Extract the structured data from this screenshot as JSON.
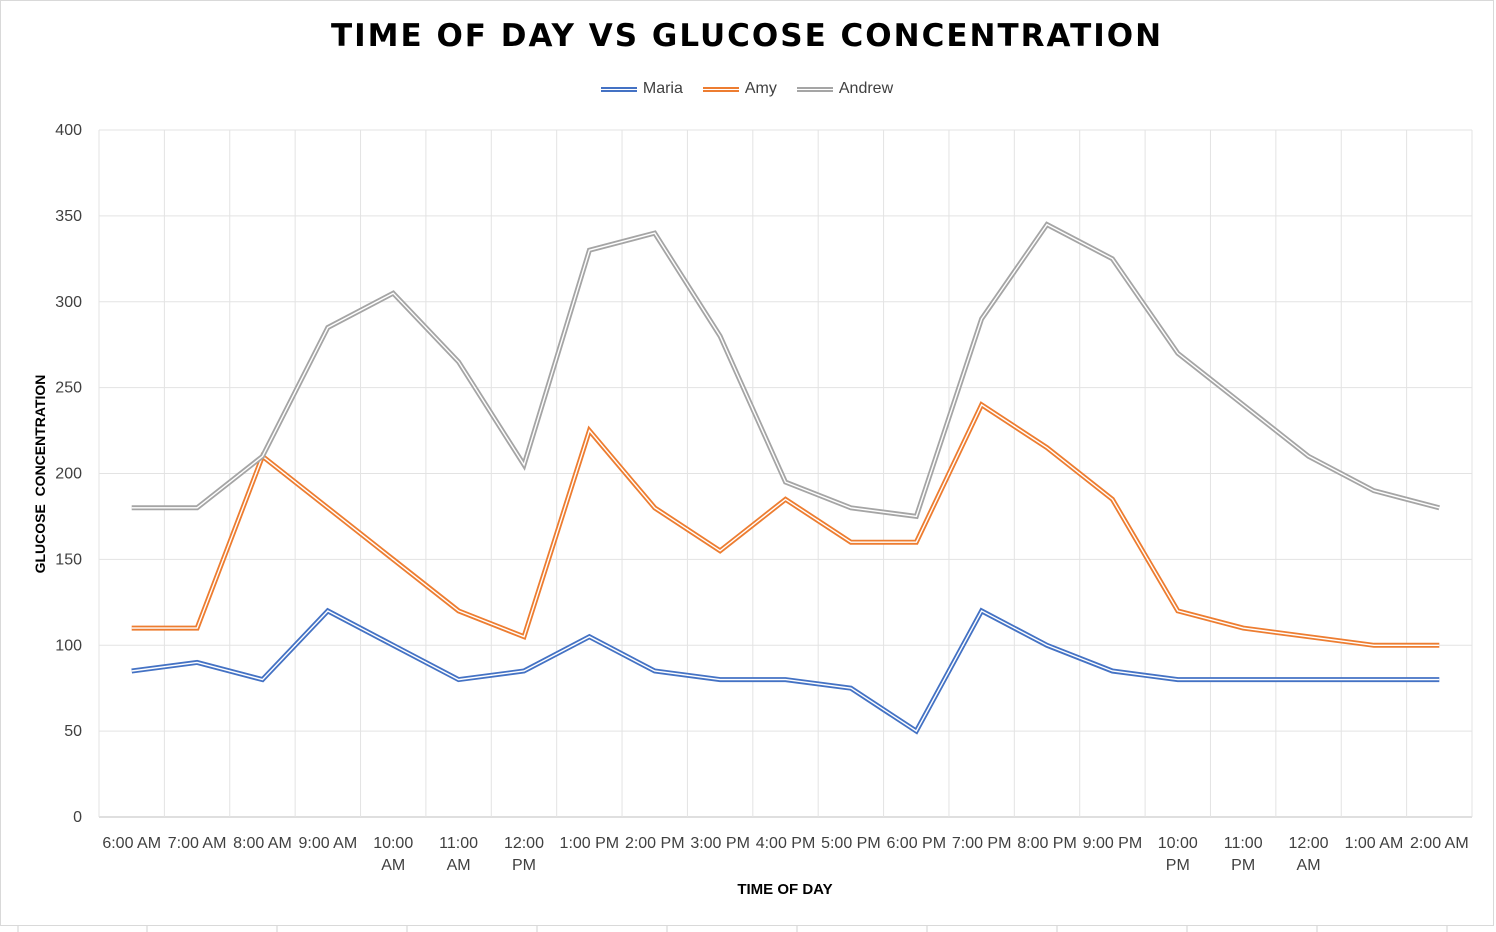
{
  "chart_data": {
    "type": "line",
    "title": "TIME OF DAY VS GLUCOSE CONCENTRATION",
    "xlabel": "TIME OF DAY",
    "ylabel": "GLUCOSE  CONCENTRATION",
    "ylim": [
      0,
      400
    ],
    "yticks": [
      0,
      50,
      100,
      150,
      200,
      250,
      300,
      350,
      400
    ],
    "grid": true,
    "legend_position": "top",
    "categories": [
      [
        "6:00 AM"
      ],
      [
        "7:00 AM"
      ],
      [
        "8:00 AM"
      ],
      [
        "9:00 AM"
      ],
      [
        "10:00",
        "AM"
      ],
      [
        "11:00",
        "AM"
      ],
      [
        "12:00",
        "PM"
      ],
      [
        "1:00 PM"
      ],
      [
        "2:00 PM"
      ],
      [
        "3:00 PM"
      ],
      [
        "4:00 PM"
      ],
      [
        "5:00 PM"
      ],
      [
        "6:00 PM"
      ],
      [
        "7:00 PM"
      ],
      [
        "8:00 PM"
      ],
      [
        "9:00 PM"
      ],
      [
        "10:00",
        "PM"
      ],
      [
        "11:00",
        "PM"
      ],
      [
        "12:00",
        "AM"
      ],
      [
        "1:00 AM"
      ],
      [
        "2:00 AM"
      ]
    ],
    "series": [
      {
        "name": "Maria",
        "color": "#4472c4",
        "values": [
          85,
          90,
          80,
          120,
          100,
          80,
          85,
          105,
          85,
          80,
          80,
          75,
          50,
          120,
          100,
          85,
          80,
          80,
          80,
          80,
          80
        ]
      },
      {
        "name": "Amy",
        "color": "#ed7d31",
        "values": [
          110,
          110,
          210,
          180,
          150,
          120,
          105,
          225,
          180,
          155,
          185,
          160,
          160,
          240,
          215,
          185,
          120,
          110,
          105,
          100,
          100
        ]
      },
      {
        "name": "Andrew",
        "color": "#a5a5a5",
        "values": [
          180,
          180,
          210,
          285,
          305,
          265,
          205,
          330,
          340,
          280,
          195,
          180,
          175,
          290,
          345,
          325,
          270,
          240,
          210,
          190,
          180
        ]
      }
    ]
  }
}
